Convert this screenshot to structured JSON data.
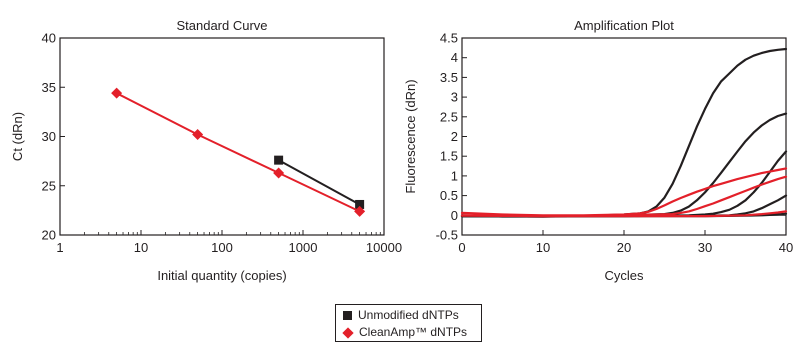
{
  "colors": {
    "unmodified": "#231f20",
    "cleanamp": "#e3202a",
    "axis": "#231f20"
  },
  "legend": {
    "items": [
      {
        "label": "Unmodified dNTPs",
        "color": "#231f20",
        "marker": "square"
      },
      {
        "label": "CleanAmp™ dNTPs",
        "color": "#e3202a",
        "marker": "diamond"
      }
    ]
  },
  "chart_data": [
    {
      "type": "line",
      "title": "Standard Curve",
      "xlabel": "Initial quantity (copies)",
      "ylabel": "Ct (dRn)",
      "xscale": "log",
      "xlim": [
        1,
        10000
      ],
      "ylim": [
        20,
        40
      ],
      "xticks": [
        1,
        10,
        100,
        1000,
        10000
      ],
      "xtick_labels": [
        "1",
        "10",
        "100",
        "1000",
        "10000"
      ],
      "yticks": [
        20,
        25,
        30,
        35,
        40
      ],
      "ytick_labels": [
        "20",
        "25",
        "30",
        "35",
        "40"
      ],
      "grid": false,
      "series": [
        {
          "name": "Unmodified dNTPs",
          "color": "#231f20",
          "marker": "square",
          "x": [
            500,
            5000
          ],
          "y": [
            27.6,
            23.1
          ]
        },
        {
          "name": "CleanAmp™ dNTPs",
          "color": "#e3202a",
          "marker": "diamond",
          "x": [
            5,
            50,
            500,
            5000
          ],
          "y": [
            34.4,
            30.2,
            26.3,
            22.4
          ]
        }
      ]
    },
    {
      "type": "line",
      "title": "Amplification Plot",
      "xlabel": "Cycles",
      "ylabel": "Fluorescence (dRn)",
      "xlim": [
        0,
        40
      ],
      "ylim": [
        -0.5,
        4.5
      ],
      "xticks": [
        0,
        10,
        20,
        30,
        40
      ],
      "xtick_labels": [
        "0",
        "10",
        "20",
        "30",
        "40"
      ],
      "yticks": [
        -0.5,
        0,
        0.5,
        1,
        1.5,
        2,
        2.5,
        3,
        3.5,
        4,
        4.5
      ],
      "ytick_labels": [
        "-0.5",
        "0",
        "0.5",
        "1",
        "1.5",
        "2",
        "2.5",
        "3",
        "3.5",
        "4",
        "4.5"
      ],
      "grid": false,
      "series": [
        {
          "color": "#231f20",
          "x": [
            0,
            5,
            10,
            15,
            20,
            22,
            23,
            24,
            25,
            26,
            27,
            28,
            29,
            30,
            31,
            32,
            33,
            34,
            35,
            36,
            37,
            38,
            39,
            40
          ],
          "y": [
            0,
            -0.03,
            -0.03,
            -0.02,
            0.02,
            0.05,
            0.1,
            0.22,
            0.45,
            0.8,
            1.25,
            1.75,
            2.25,
            2.7,
            3.1,
            3.4,
            3.6,
            3.8,
            3.95,
            4.05,
            4.12,
            4.17,
            4.2,
            4.22
          ]
        },
        {
          "color": "#231f20",
          "x": [
            0,
            10,
            20,
            25,
            26,
            27,
            28,
            29,
            30,
            31,
            32,
            33,
            34,
            35,
            36,
            37,
            38,
            39,
            40
          ],
          "y": [
            -0.02,
            -0.03,
            0,
            0.03,
            0.06,
            0.12,
            0.22,
            0.38,
            0.58,
            0.82,
            1.08,
            1.35,
            1.62,
            1.88,
            2.1,
            2.28,
            2.42,
            2.52,
            2.58
          ]
        },
        {
          "color": "#231f20",
          "x": [
            0,
            10,
            20,
            28,
            30,
            31,
            32,
            33,
            34,
            35,
            36,
            37,
            38,
            39,
            40
          ],
          "y": [
            -0.02,
            -0.03,
            -0.02,
            0,
            0.02,
            0.04,
            0.08,
            0.14,
            0.24,
            0.38,
            0.58,
            0.82,
            1.1,
            1.38,
            1.62
          ]
        },
        {
          "color": "#231f20",
          "x": [
            0,
            10,
            20,
            30,
            33,
            34,
            35,
            36,
            37,
            38,
            39,
            40
          ],
          "y": [
            -0.02,
            -0.02,
            -0.02,
            -0.01,
            0,
            0.02,
            0.05,
            0.1,
            0.18,
            0.28,
            0.38,
            0.5
          ]
        },
        {
          "color": "#231f20",
          "x": [
            0,
            10,
            20,
            30,
            35,
            37,
            38,
            39,
            40
          ],
          "y": [
            -0.02,
            -0.02,
            -0.02,
            -0.02,
            -0.01,
            0,
            0.01,
            0.02,
            0.04
          ]
        },
        {
          "color": "#e3202a",
          "x": [
            0,
            5,
            10,
            15,
            20,
            22,
            23,
            24,
            25,
            26,
            27,
            28,
            29,
            30,
            31,
            32,
            33,
            34,
            35,
            36,
            37,
            38,
            39,
            40
          ],
          "y": [
            0.06,
            0.02,
            0,
            0,
            0.02,
            0.05,
            0.09,
            0.16,
            0.25,
            0.35,
            0.44,
            0.52,
            0.6,
            0.67,
            0.74,
            0.8,
            0.86,
            0.92,
            0.97,
            1.02,
            1.07,
            1.11,
            1.15,
            1.19
          ]
        },
        {
          "color": "#e3202a",
          "x": [
            0,
            10,
            20,
            26,
            27,
            28,
            29,
            30,
            31,
            32,
            33,
            34,
            35,
            36,
            37,
            38,
            39,
            40
          ],
          "y": [
            0,
            -0.02,
            0,
            0.03,
            0.06,
            0.1,
            0.16,
            0.23,
            0.3,
            0.38,
            0.46,
            0.54,
            0.62,
            0.7,
            0.78,
            0.85,
            0.92,
            0.98
          ]
        },
        {
          "color": "#e3202a",
          "x": [
            0,
            10,
            20,
            30,
            35,
            37,
            38,
            39,
            40
          ],
          "y": [
            -0.01,
            -0.02,
            -0.02,
            -0.02,
            0,
            0.03,
            0.05,
            0.07,
            0.1
          ]
        }
      ]
    }
  ]
}
